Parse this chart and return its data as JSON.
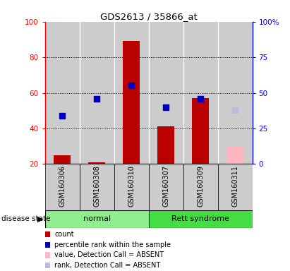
{
  "title": "GDS2613 / 35866_at",
  "samples": [
    "GSM160306",
    "GSM160308",
    "GSM160310",
    "GSM160307",
    "GSM160309",
    "GSM160311"
  ],
  "count_values": [
    25,
    21,
    89,
    41,
    57,
    null
  ],
  "percentile_values": [
    34,
    46,
    55,
    40,
    46,
    null
  ],
  "absent_value": [
    null,
    null,
    null,
    null,
    null,
    30
  ],
  "absent_rank": [
    null,
    null,
    null,
    null,
    null,
    38
  ],
  "ylim_left": [
    20,
    100
  ],
  "ylim_right": [
    0,
    100
  ],
  "yticks_left": [
    20,
    40,
    60,
    80,
    100
  ],
  "yticks_right": [
    0,
    25,
    50,
    75,
    100
  ],
  "yticklabels_right": [
    "0",
    "25",
    "50",
    "75",
    "100%"
  ],
  "bar_bottom": 20,
  "bar_color_red": "#BB0000",
  "bar_color_blue": "#0000BB",
  "bar_color_absent_value": "#FFB6C1",
  "bar_color_absent_rank": "#BBBBDD",
  "normal_color": "#90EE90",
  "rett_color": "#44DD44",
  "group_label": "disease state",
  "legend_items": [
    {
      "label": "count",
      "color": "#BB0000"
    },
    {
      "label": "percentile rank within the sample",
      "color": "#0000BB"
    },
    {
      "label": "value, Detection Call = ABSENT",
      "color": "#FFB6C1"
    },
    {
      "label": "rank, Detection Call = ABSENT",
      "color": "#BBBBDD"
    }
  ],
  "dotted_lines": [
    40,
    60,
    80
  ],
  "bar_width": 0.5,
  "dot_size": 35,
  "grey_col": "#CCCCCC",
  "white_col": "#FFFFFF"
}
